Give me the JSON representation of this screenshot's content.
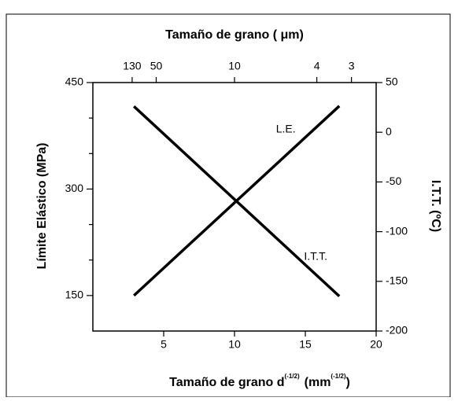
{
  "chart_data": {
    "type": "line",
    "xlabel": [
      "Tamaño de grano d",
      "(-1/2)",
      "(mm",
      "(-1/2)",
      ")"
    ],
    "x2label": "Tamaño de grano ( μm)",
    "ylabel": "Límite Elástico (MPa)",
    "y2label": "I.T.T. (ºC)",
    "xlim": [
      0,
      20
    ],
    "xticks": [
      5,
      10,
      15,
      20
    ],
    "x2ticks": [
      130,
      50,
      10,
      4,
      3
    ],
    "ylim": [
      100,
      450
    ],
    "yticks": [
      450,
      300,
      150
    ],
    "y_minor_ticks": [
      400,
      350,
      250,
      200
    ],
    "y2lim": [
      -200,
      50
    ],
    "y2ticks": [
      50,
      0,
      -50,
      -100,
      -150,
      -200
    ],
    "series": [
      {
        "name": "L.E.",
        "color": "#000000",
        "x": [
          2.9,
          17.4
        ],
        "values": [
          150,
          417
        ]
      },
      {
        "name": "I.T.T.",
        "color": "#000000",
        "axis": "y2",
        "x": [
          2.9,
          17.4
        ],
        "values": [
          26,
          -165
        ]
      }
    ]
  }
}
